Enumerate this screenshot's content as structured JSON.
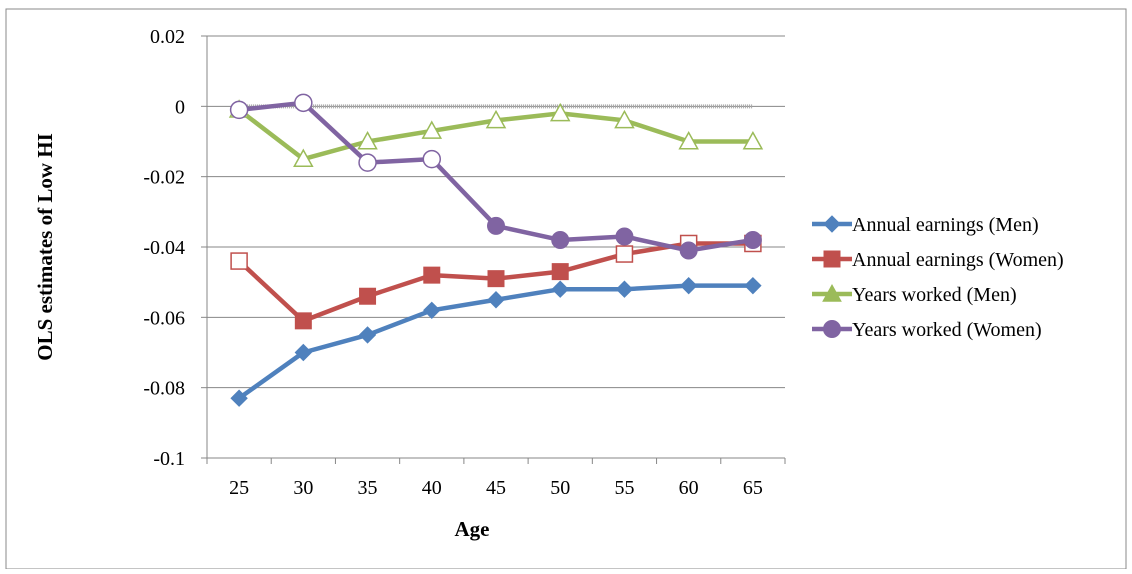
{
  "chart_data": {
    "type": "line",
    "title": "",
    "xlabel": "Age",
    "ylabel": "OLS estimates of Low HI",
    "categories": [
      "25",
      "30",
      "35",
      "40",
      "45",
      "50",
      "55",
      "60",
      "65"
    ],
    "ylim": [
      -0.1,
      0.02
    ],
    "yticks": [
      0.02,
      0,
      -0.02,
      -0.04,
      -0.06,
      -0.08,
      -0.1
    ],
    "ytick_labels": [
      "0.02",
      "0",
      "-0.02",
      "-0.04",
      "-0.06",
      "-0.08",
      "-0.1"
    ],
    "grid": true,
    "zero_reference_line": true,
    "legend_position": "right",
    "series": [
      {
        "name": "Annual earnings (Men)",
        "color": "#4F81BD",
        "marker": "diamond",
        "values": [
          -0.083,
          -0.07,
          -0.065,
          -0.058,
          -0.055,
          -0.052,
          -0.052,
          -0.051,
          -0.051
        ],
        "hollow": [
          false,
          false,
          false,
          false,
          false,
          false,
          false,
          false,
          false
        ]
      },
      {
        "name": "Annual earnings (Women)",
        "color": "#C0504D",
        "marker": "square",
        "values": [
          -0.044,
          -0.061,
          -0.054,
          -0.048,
          -0.049,
          -0.047,
          -0.042,
          -0.039,
          -0.039
        ],
        "hollow": [
          true,
          false,
          false,
          false,
          false,
          false,
          true,
          true,
          true
        ]
      },
      {
        "name": "Years worked (Men)",
        "color": "#9BBB59",
        "marker": "triangle",
        "values": [
          -0.001,
          -0.015,
          -0.01,
          -0.007,
          -0.004,
          -0.002,
          -0.004,
          -0.01,
          -0.01
        ],
        "hollow": [
          true,
          true,
          true,
          true,
          true,
          true,
          true,
          true,
          true
        ]
      },
      {
        "name": "Years worked (Women)",
        "color": "#8064A2",
        "marker": "circle",
        "values": [
          -0.001,
          0.001,
          -0.016,
          -0.015,
          -0.034,
          -0.038,
          -0.037,
          -0.041,
          -0.038
        ],
        "hollow": [
          true,
          true,
          true,
          true,
          false,
          false,
          false,
          false,
          false
        ]
      }
    ]
  }
}
